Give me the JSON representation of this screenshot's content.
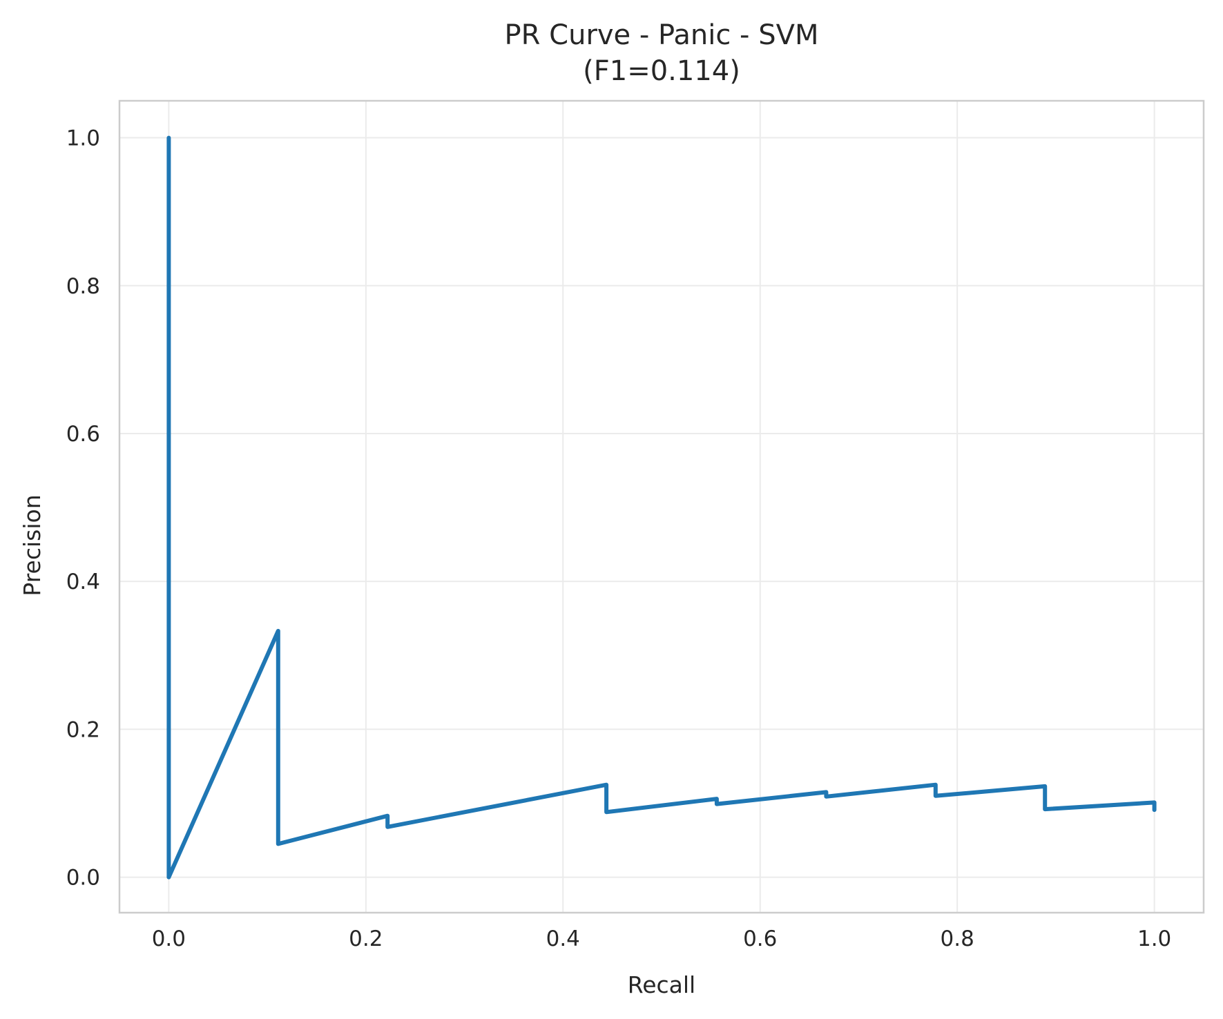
{
  "chart_data": {
    "type": "line",
    "title": "PR Curve - Panic - SVM",
    "subtitle": "(F1=0.114)",
    "xlabel": "Recall",
    "ylabel": "Precision",
    "xlim": [
      -0.05,
      1.05
    ],
    "ylim": [
      -0.048,
      1.05
    ],
    "xticks": [
      0.0,
      0.2,
      0.4,
      0.6,
      0.8,
      1.0
    ],
    "xtick_labels": [
      "0.0",
      "0.2",
      "0.4",
      "0.6",
      "0.8",
      "1.0"
    ],
    "yticks": [
      0.0,
      0.2,
      0.4,
      0.6,
      0.8,
      1.0
    ],
    "ytick_labels": [
      "0.0",
      "0.2",
      "0.4",
      "0.6",
      "0.8",
      "1.0"
    ],
    "grid": true,
    "legend": "none",
    "color": "#1f77b4",
    "series": [
      {
        "x": [
          0.0,
          0.0,
          0.111,
          0.111,
          0.222,
          0.222,
          0.444,
          0.444,
          0.556,
          0.556,
          0.667,
          0.667,
          0.778,
          0.778,
          0.889,
          0.889,
          1.0,
          1.0
        ],
        "y": [
          1.0,
          0.0,
          0.333,
          0.045,
          0.083,
          0.068,
          0.125,
          0.088,
          0.106,
          0.099,
          0.115,
          0.109,
          0.125,
          0.11,
          0.123,
          0.092,
          0.101,
          0.091
        ]
      }
    ]
  }
}
